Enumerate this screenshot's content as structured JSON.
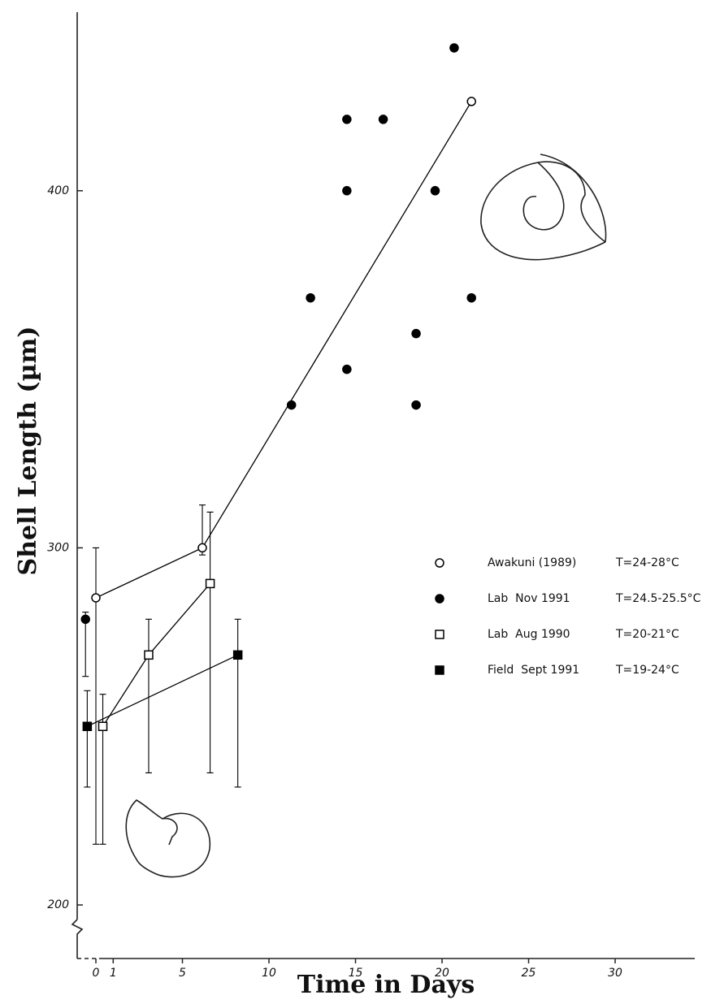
{
  "chart_data": {
    "type": "scatter",
    "xlabel": "Time in Days",
    "ylabel": "Shell Length (µm)",
    "xlim": [
      -1.08,
      34.6
    ],
    "ylim": [
      185,
      450
    ],
    "xticks": [
      0,
      1,
      5,
      10,
      15,
      20,
      25,
      30
    ],
    "yticks": [
      200,
      300,
      400
    ],
    "series": [
      {
        "name": "Awakuni (1989)",
        "conditions": "T=24-28°C",
        "marker": "open-circle",
        "line": true,
        "color": "#000000",
        "x": [
          0,
          6.15,
          21.7
        ],
        "values": [
          286,
          300,
          425
        ],
        "ylow": [
          217,
          298,
          null
        ],
        "yhigh": [
          300,
          312,
          null
        ]
      },
      {
        "name": "Lab  Nov 1991",
        "conditions": "T=24.5-25.5°C",
        "marker": "filled-circle",
        "line": false,
        "color": "#000000",
        "x": [
          -0.6,
          11.3,
          12.4,
          14.5,
          14.5,
          14.5,
          16.6,
          18.5,
          18.5,
          19.6,
          20.7,
          21.7
        ],
        "values": [
          280,
          340,
          370,
          420,
          400,
          350,
          420,
          360,
          340,
          400,
          440,
          370
        ],
        "ylow": [
          264,
          null,
          null,
          null,
          null,
          null,
          null,
          null,
          null,
          null,
          null,
          null
        ],
        "yhigh": [
          282,
          null,
          null,
          null,
          null,
          null,
          null,
          null,
          null,
          null,
          null,
          null
        ]
      },
      {
        "name": "Lab  Aug 1990",
        "conditions": "T=20-21°C",
        "marker": "open-square",
        "line": true,
        "color": "#000000",
        "x": [
          0.4,
          3.05,
          6.6
        ],
        "values": [
          250,
          270,
          290
        ],
        "ylow": [
          217,
          237,
          237
        ],
        "yhigh": [
          259,
          280,
          310
        ]
      },
      {
        "name": "Field  Sept 1991",
        "conditions": "T=19-24°C",
        "marker": "filled-square",
        "line": true,
        "color": "#000000",
        "x": [
          -0.5,
          8.2
        ],
        "values": [
          250,
          270
        ],
        "ylow": [
          233,
          233
        ],
        "yhigh": [
          260,
          280
        ]
      }
    ]
  }
}
